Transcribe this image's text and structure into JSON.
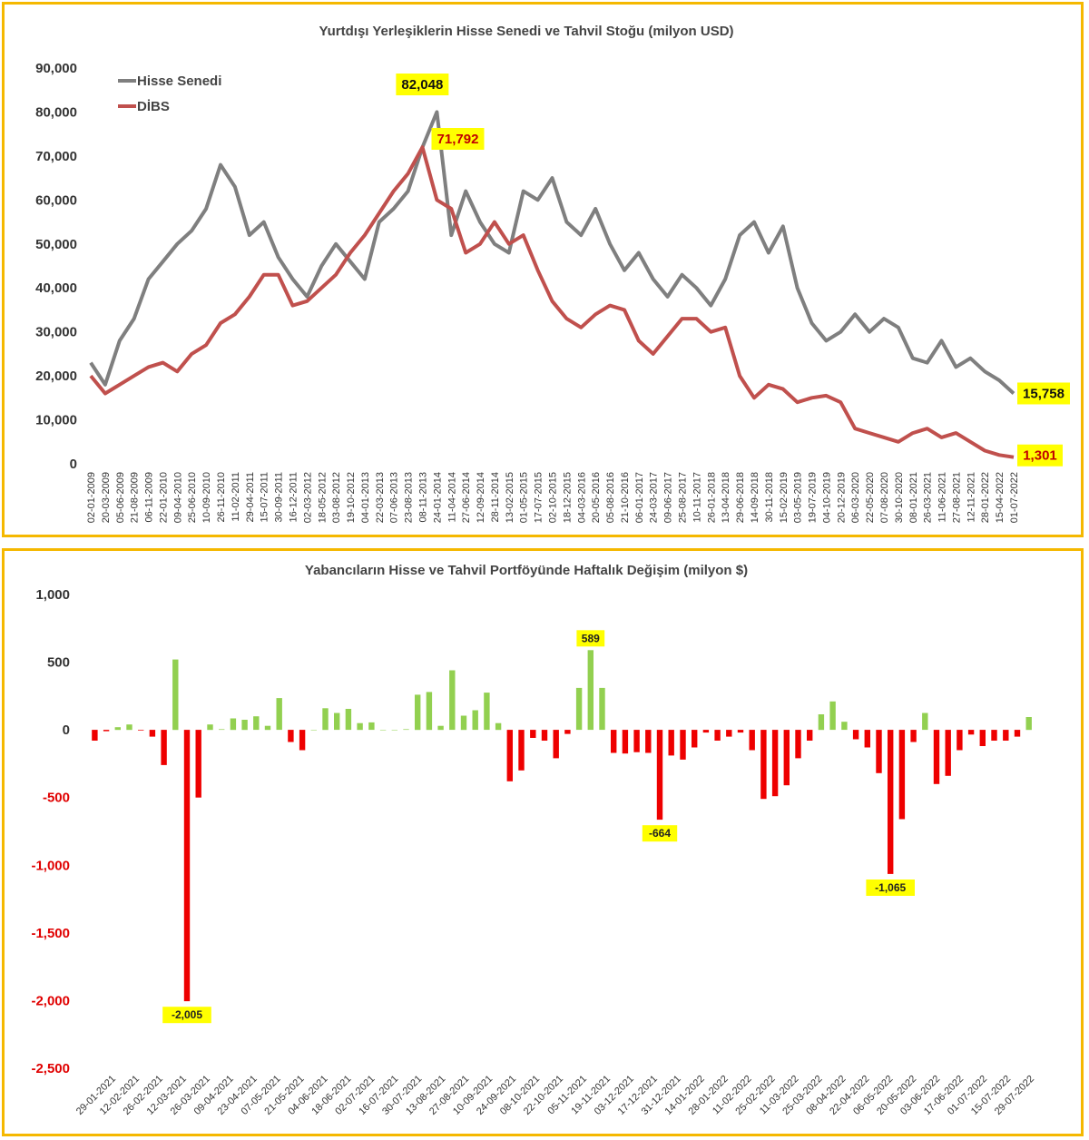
{
  "chart_data": [
    {
      "type": "line",
      "title": "Yurtdışı Yerleşiklerin Hisse Senedi ve Tahvil Stoğu (milyon USD)",
      "ylim": [
        0,
        90000
      ],
      "yticks": [
        "0",
        "10,000",
        "20,000",
        "30,000",
        "40,000",
        "50,000",
        "60,000",
        "70,000",
        "80,000",
        "90,000"
      ],
      "ytick_values": [
        0,
        10000,
        20000,
        30000,
        40000,
        50000,
        60000,
        70000,
        80000,
        90000
      ],
      "x_dates": [
        "02-01-2009",
        "20-03-2009",
        "05-06-2009",
        "21-08-2009",
        "06-11-2009",
        "22-01-2010",
        "09-04-2010",
        "25-06-2010",
        "10-09-2010",
        "26-11-2010",
        "11-02-2011",
        "29-04-2011",
        "15-07-2011",
        "30-09-2011",
        "16-12-2011",
        "02-03-2012",
        "18-05-2012",
        "03-08-2012",
        "19-10-2012",
        "04-01-2013",
        "22-03-2013",
        "07-06-2013",
        "23-08-2013",
        "08-11-2013",
        "24-01-2014",
        "11-04-2014",
        "27-06-2014",
        "12-09-2014",
        "28-11-2014",
        "13-02-2015",
        "01-05-2015",
        "17-07-2015",
        "02-10-2015",
        "18-12-2015",
        "04-03-2016",
        "20-05-2016",
        "05-08-2016",
        "21-10-2016",
        "06-01-2017",
        "24-03-2017",
        "09-06-2017",
        "25-08-2017",
        "10-11-2017",
        "26-01-2018",
        "13-04-2018",
        "29-06-2018",
        "14-09-2018",
        "30-11-2018",
        "15-02-2019",
        "03-05-2019",
        "19-07-2019",
        "04-10-2019",
        "20-12-2019",
        "06-03-2020",
        "22-05-2020",
        "07-08-2020",
        "30-10-2020",
        "08-01-2021",
        "26-03-2021",
        "11-06-2021",
        "27-08-2021",
        "12-11-2021",
        "28-01-2022",
        "15-04-2022",
        "01-07-2022"
      ],
      "series": [
        {
          "name": "Hisse Senedi",
          "color": "#7f7f7f",
          "values": [
            23000,
            18000,
            28000,
            33000,
            42000,
            46000,
            50000,
            53000,
            58000,
            68000,
            63000,
            52000,
            55000,
            47000,
            42000,
            38000,
            45000,
            50000,
            46000,
            42000,
            55000,
            58000,
            62000,
            72000,
            80000,
            52000,
            62000,
            55000,
            50000,
            48000,
            62000,
            60000,
            65000,
            55000,
            52000,
            58000,
            50000,
            44000,
            48000,
            42000,
            38000,
            43000,
            40000,
            36000,
            42000,
            52000,
            55000,
            48000,
            54000,
            40000,
            32000,
            28000,
            30000,
            34000,
            30000,
            33000,
            31000,
            24000,
            23000,
            28000,
            22000,
            24000,
            21000,
            19000,
            16000
          ],
          "end_label": "15,758",
          "peak_index": 24,
          "peak_label": "82,048"
        },
        {
          "name": "DİBS",
          "color": "#c0504d",
          "values": [
            20000,
            16000,
            18000,
            20000,
            22000,
            23000,
            21000,
            25000,
            27000,
            32000,
            34000,
            38000,
            43000,
            43000,
            36000,
            37000,
            40000,
            43000,
            48000,
            52000,
            57000,
            62000,
            66000,
            72000,
            60000,
            58000,
            48000,
            50000,
            55000,
            50000,
            52000,
            44000,
            37000,
            33000,
            31000,
            34000,
            36000,
            35000,
            28000,
            25000,
            29000,
            33000,
            33000,
            30000,
            31000,
            20000,
            15000,
            18000,
            17000,
            14000,
            15000,
            15500,
            14000,
            8000,
            7000,
            6000,
            5000,
            7000,
            8000,
            6000,
            7000,
            5000,
            3000,
            2000,
            1500
          ],
          "end_label": "1,301",
          "peak_index": 23,
          "peak_label": "71,792"
        }
      ]
    },
    {
      "type": "bar",
      "title": "Yabancıların Hisse ve Tahvil Portföyünde Haftalık Değişim (milyon $)",
      "ylim": [
        -2500,
        1000
      ],
      "yticks": [
        "-2,500",
        "-2,000",
        "-1,500",
        "-1,000",
        "-500",
        "0",
        "500",
        "1,000"
      ],
      "ytick_values": [
        -2500,
        -2000,
        -1500,
        -1000,
        -500,
        0,
        500,
        1000
      ],
      "x_tick_labels": [
        "29-01-2021",
        "12-02-2021",
        "26-02-2021",
        "12-03-2021",
        "26-03-2021",
        "09-04-2021",
        "23-04-2021",
        "07-05-2021",
        "21-05-2021",
        "04-06-2021",
        "18-06-2021",
        "02-07-2021",
        "16-07-2021",
        "30-07-2021",
        "13-08-2021",
        "27-08-2021",
        "10-09-2021",
        "24-09-2021",
        "08-10-2021",
        "22-10-2021",
        "05-11-2021",
        "19-11-2021",
        "03-12-2021",
        "17-12-2021",
        "31-12-2021",
        "14-01-2022",
        "28-01-2022",
        "11-02-2022",
        "25-02-2022",
        "11-03-2022",
        "25-03-2022",
        "08-04-2022",
        "22-04-2022",
        "06-05-2022",
        "20-05-2022",
        "03-06-2022",
        "17-06-2022",
        "01-07-2022",
        "15-07-2022",
        "29-07-2022"
      ],
      "values": [
        -80,
        -10,
        20,
        40,
        -5,
        -50,
        -260,
        520,
        -2005,
        -500,
        40,
        5,
        85,
        75,
        100,
        30,
        235,
        -90,
        -150,
        0,
        160,
        125,
        155,
        50,
        55,
        0,
        0,
        5,
        260,
        280,
        30,
        440,
        105,
        145,
        275,
        50,
        -380,
        -300,
        -60,
        -80,
        -210,
        -30,
        310,
        589,
        310,
        -170,
        -175,
        -165,
        -170,
        -664,
        -190,
        -220,
        -130,
        -20,
        -80,
        -50,
        -20,
        -150,
        -510,
        -490,
        -410,
        -210,
        -80,
        115,
        210,
        60,
        -70,
        -130,
        -320,
        -1065,
        -660,
        -90,
        125,
        -400,
        -340,
        -150,
        -35,
        -120,
        -80,
        -80,
        -50,
        95
      ],
      "positive_color": "#92d050",
      "negative_color": "#ee0000",
      "callouts": [
        {
          "index": 8,
          "label": "-2,005"
        },
        {
          "index": 43,
          "label": "589"
        },
        {
          "index": 49,
          "label": "-664"
        },
        {
          "index": 69,
          "label": "-1,065"
        }
      ]
    }
  ]
}
